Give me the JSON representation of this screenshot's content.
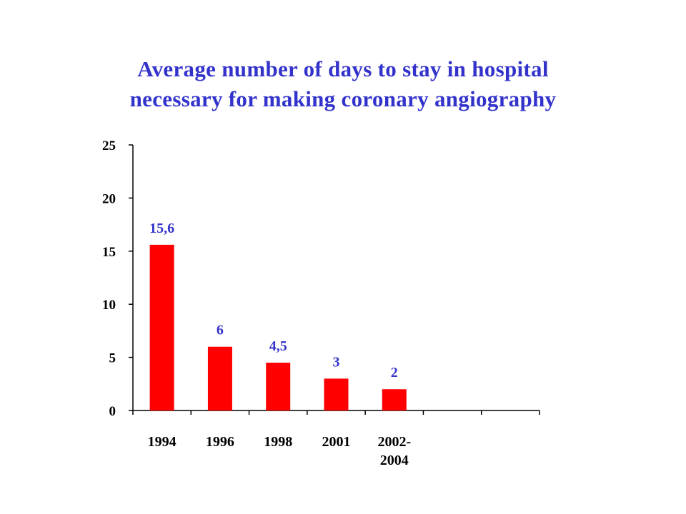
{
  "chart_data": {
    "type": "bar",
    "title_lines": [
      "Average number of days to stay in hospital",
      "necessary for making coronary angiography"
    ],
    "categories": [
      [
        "1994"
      ],
      [
        "1996"
      ],
      [
        "1998"
      ],
      [
        "2001"
      ],
      [
        "2002-",
        "2004"
      ],
      [
        ""
      ],
      [
        ""
      ]
    ],
    "values": [
      15.6,
      6,
      4.5,
      3,
      2,
      null,
      null
    ],
    "data_labels": [
      "15,6",
      "6",
      "4,5",
      "3",
      "2",
      "",
      ""
    ],
    "yticks": [
      0,
      5,
      10,
      15,
      20,
      25
    ],
    "ylim": [
      0,
      25
    ],
    "xlabel": "",
    "ylabel": "",
    "grid": false,
    "legend": "none",
    "colors": {
      "bar": "#ff0000",
      "data_label": "#3333cc",
      "title": "#3333cc",
      "axis": "#000000"
    }
  }
}
